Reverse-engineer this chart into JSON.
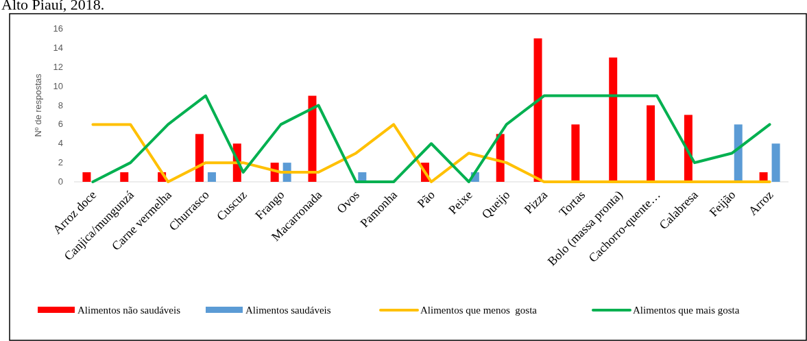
{
  "chart_data": {
    "type": "bar",
    "title": "Alto Piauí, 2018.",
    "ylabel": "Nº de respostas",
    "categories": [
      "Arroz doce",
      "Canjica/mungunzá",
      "Carne vermelha",
      "Churrasco",
      "Cuscuz",
      "Frango",
      "Macarronada",
      "Ovos",
      "Pamonha",
      "Pão",
      "Peixe",
      "Queijo",
      "Pizza",
      "Tortas",
      "Bolo (massa pronta)",
      "Cachorro-quente…",
      "Calabresa",
      "Feijão",
      "Arroz"
    ],
    "series": [
      {
        "name": "Alimentos não saudáveis",
        "color": "#ff0000",
        "values": [
          1,
          1,
          1,
          5,
          4,
          2,
          9,
          null,
          null,
          2,
          null,
          5,
          15,
          6,
          13,
          8,
          7,
          null,
          1
        ]
      },
      {
        "name": "Alimentos saudáveis",
        "color": "#5b9bd5",
        "values": [
          null,
          null,
          null,
          1,
          null,
          2,
          null,
          1,
          null,
          null,
          1,
          null,
          null,
          null,
          null,
          null,
          null,
          6,
          4
        ]
      },
      {
        "name": "Alimentos que menos  gosta",
        "type": "line",
        "color": "#ffc000",
        "values": [
          6,
          6,
          0,
          2,
          2,
          1,
          1,
          3,
          6,
          0,
          3,
          2,
          0,
          0,
          0,
          0,
          0,
          0,
          0
        ]
      },
      {
        "name": "Alimentos que mais gosta",
        "type": "line",
        "color": "#00b050",
        "values": [
          0,
          2,
          6,
          9,
          1,
          6,
          8,
          0,
          0,
          4,
          0,
          6,
          9,
          9,
          9,
          9,
          2,
          3,
          6
        ]
      }
    ],
    "ylim": [
      0,
      16
    ],
    "yticks": [
      0,
      2,
      4,
      6,
      8,
      10,
      12,
      14,
      16
    ],
    "grid": false,
    "legend": "bottom",
    "marker": "none",
    "line_style": "solid"
  }
}
